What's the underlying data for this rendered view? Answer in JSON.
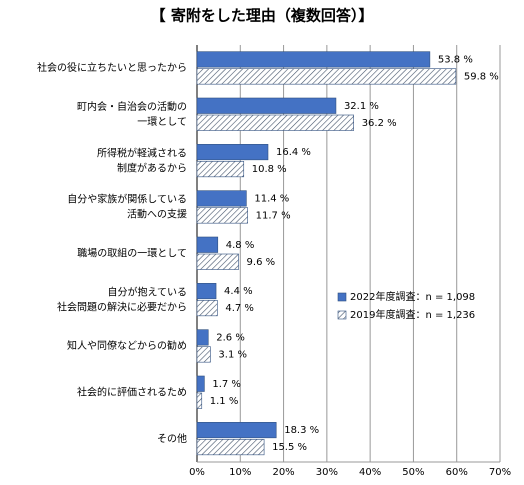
{
  "chart_data": {
    "type": "hbar",
    "title": "【 寄附をした理由（複数回答）】",
    "categories": [
      [
        "社会の役に立ちたいと思ったから"
      ],
      [
        "町内会・自治会の活動の",
        "一環として"
      ],
      [
        "所得税が軽減される",
        "制度があるから"
      ],
      [
        "自分や家族が関係している",
        "活動への支援"
      ],
      [
        "職場の取組の一環として"
      ],
      [
        "自分が抱えている",
        "社会問題の解決に必要だから"
      ],
      [
        "知人や同僚などからの勧め"
      ],
      [
        "社会的に評価されるため"
      ],
      [
        "その他"
      ]
    ],
    "series": [
      {
        "name": "2022年度調査：n = 1,098",
        "color": "#4472c4",
        "pattern": "solid",
        "values": [
          53.8,
          32.1,
          16.4,
          11.4,
          4.8,
          4.4,
          2.6,
          1.7,
          18.3
        ],
        "value_labels": [
          "53.8 %",
          "32.1 %",
          "16.4 %",
          "11.4 %",
          "4.8 %",
          "4.4 %",
          "2.6 %",
          "1.7 %",
          "18.3 %"
        ]
      },
      {
        "name": "2019年度調査：n = 1,236",
        "color": "#44546a",
        "pattern": "hatch",
        "values": [
          59.8,
          36.2,
          10.8,
          11.7,
          9.6,
          4.7,
          3.1,
          1.1,
          15.5
        ],
        "value_labels": [
          "59.8 %",
          "36.2 %",
          "10.8 %",
          "11.7 %",
          "9.6 %",
          "4.7 %",
          "3.1 %",
          "1.1 %",
          "15.5 %"
        ]
      }
    ],
    "xlim": [
      0,
      70
    ],
    "xticks": [
      {
        "value": 0,
        "label": "0%"
      },
      {
        "value": 10,
        "label": "10%"
      },
      {
        "value": 20,
        "label": "20%"
      },
      {
        "value": 30,
        "label": "30%"
      },
      {
        "value": 40,
        "label": "40%"
      },
      {
        "value": 50,
        "label": "50%"
      },
      {
        "value": 60,
        "label": "60%"
      },
      {
        "value": 70,
        "label": "70%"
      }
    ],
    "grid": true,
    "legend": "right"
  }
}
